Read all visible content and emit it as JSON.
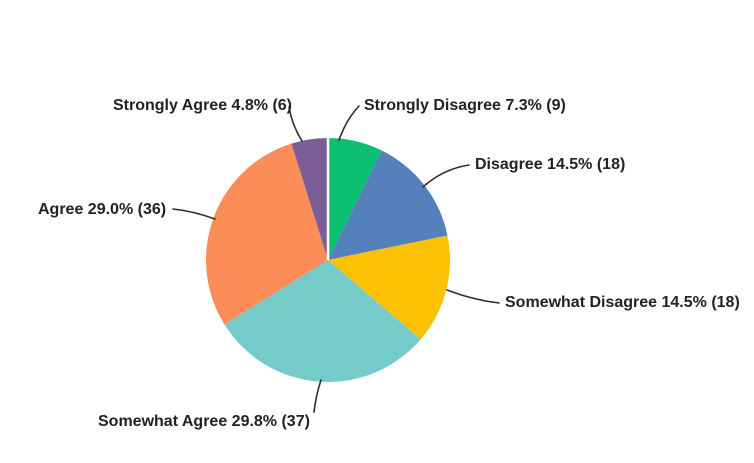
{
  "chart_data": {
    "type": "pie",
    "title": "",
    "legend": "none",
    "start_angle_deg": 0,
    "direction": "clockwise",
    "slices": [
      {
        "label": "Strongly Disagree",
        "percent": 7.3,
        "count": 9,
        "display": "Strongly Disagree 7.3% (9)",
        "color": "#0dbf71"
      },
      {
        "label": "Disagree",
        "percent": 14.5,
        "count": 18,
        "display": "Disagree 14.5% (18)",
        "color": "#5480bb"
      },
      {
        "label": "Somewhat Disagree",
        "percent": 14.5,
        "count": 18,
        "display": "Somewhat Disagree 14.5% (18)",
        "color": "#fcc105"
      },
      {
        "label": "Somewhat Agree",
        "percent": 29.8,
        "count": 37,
        "display": "Somewhat Agree 29.8% (37)",
        "color": "#75cbca"
      },
      {
        "label": "Agree",
        "percent": 29.0,
        "count": 36,
        "display": "Agree 29.0% (36)",
        "color": "#fc8d59"
      },
      {
        "label": "Strongly Agree",
        "percent": 4.8,
        "count": 6,
        "display": "Strongly Agree 4.8% (6)",
        "color": "#7b5e97"
      }
    ],
    "colors": {
      "background": "#ffffff",
      "label_text": "#222222",
      "leader_line": "#2e2e2e",
      "slice_divider": "#ffffff"
    }
  }
}
